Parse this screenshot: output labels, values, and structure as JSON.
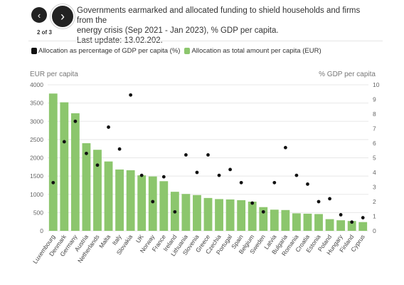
{
  "nav": {
    "prev_icon": "‹",
    "next_icon": "›",
    "page": "2 of 3"
  },
  "title": {
    "line1": "Governments earmarked and allocated funding to shield households and firms from the",
    "line2": "energy crisis (Sep 2021 - Jan 2023), % GDP per capita.",
    "line3": "Last update: 13.02.202."
  },
  "legend": {
    "gdp": "Allocation as percentage of GDP per capita (%)",
    "eur": "Allocation as total amount per capita (EUR)"
  },
  "colors": {
    "bar": "#8cc66d",
    "dot": "#111111",
    "grid": "#e8e8e8"
  },
  "chart_data": {
    "type": "bar",
    "left_axis_title": "EUR per capita",
    "right_axis_title": "% GDP per capita",
    "ylim_left": [
      0,
      4000
    ],
    "ylim_right": [
      0,
      10
    ],
    "left_ticks": [
      "0",
      "500",
      "1000",
      "1500",
      "2000",
      "2500",
      "3000",
      "3500",
      "4000"
    ],
    "right_ticks": [
      "0",
      "1",
      "2",
      "3",
      "4",
      "5",
      "6",
      "7",
      "8",
      "9",
      "10"
    ],
    "grid": true,
    "legend_position": "top-left",
    "categories": [
      "Luxembourg",
      "Denmark",
      "Germany",
      "Austria",
      "Netherlands",
      "Malta",
      "Italy",
      "Slovakia",
      "UK",
      "Norway",
      "France",
      "Ireland",
      "Lithuania",
      "Slovenia",
      "Greece",
      "Czechia",
      "Portugal",
      "Spain",
      "Belgium",
      "Sweden",
      "Latvia",
      "Bulgaria",
      "Romania",
      "Croatia",
      "Estonia",
      "Poland",
      "Hungary",
      "Finland",
      "Cyprus"
    ],
    "series": [
      {
        "name": "Allocation as total amount per capita (EUR)",
        "kind": "bar",
        "axis": "left",
        "values": [
          3760,
          3520,
          3220,
          2400,
          2220,
          1900,
          1680,
          1660,
          1520,
          1490,
          1360,
          1070,
          1010,
          980,
          900,
          870,
          860,
          840,
          800,
          650,
          580,
          570,
          480,
          470,
          460,
          320,
          290,
          270,
          240
        ]
      },
      {
        "name": "Allocation as percentage of GDP per capita (%)",
        "kind": "scatter",
        "axis": "right",
        "values": [
          3.3,
          6.1,
          7.5,
          5.3,
          4.5,
          7.1,
          5.6,
          9.3,
          3.8,
          2.0,
          3.7,
          1.3,
          5.2,
          4.0,
          5.2,
          3.8,
          4.2,
          3.3,
          1.9,
          1.3,
          3.3,
          5.7,
          3.8,
          3.2,
          2.0,
          2.2,
          1.1,
          0.6,
          0.9
        ]
      }
    ]
  }
}
